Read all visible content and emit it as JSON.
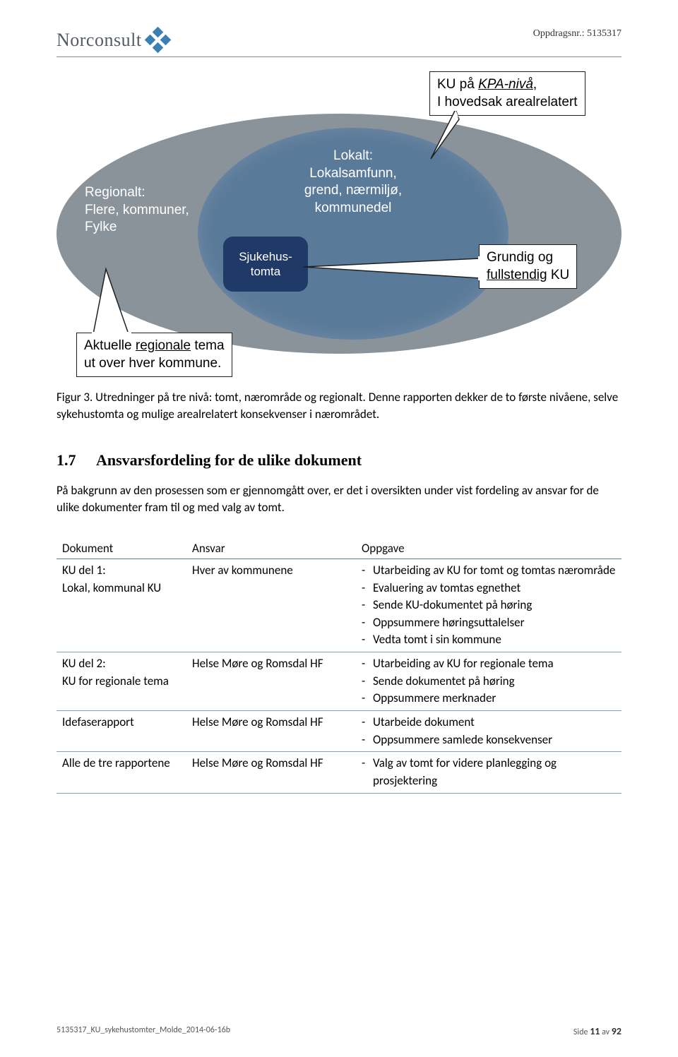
{
  "header": {
    "company": "Norconsult",
    "ref_label": "Oppdragsnr.: 5135317"
  },
  "diagram": {
    "colors": {
      "outer_ellipse": "#8a929a",
      "mid_ellipse": "#5a7a99",
      "inner_box": "#1f3a66",
      "callout_border": "#1f1f1f",
      "callout_bg": "#ffffff"
    },
    "inner_label": "Sjukehus-\ntomta",
    "outer_label": "Regionalt:\nFlere, kommuner,\nFylke",
    "mid_label": "Lokalt:\nLokalsamfunn,\ngrend, nærmiljø,\nkommunedel",
    "callout_top_a": "KU på ",
    "callout_top_b_italic_underline": "KPA-nivå",
    "callout_top_c": ",\nI hovedsak arealrelatert",
    "callout_right_a": "Grundig og\n",
    "callout_right_b_underline": "fullstendig",
    "callout_right_c": " KU",
    "callout_bottom_a": "Aktuelle ",
    "callout_bottom_b_underline": "regionale",
    "callout_bottom_c": " tema\nut over hver kommune."
  },
  "caption": "Figur 3. Utredninger på tre nivå: tomt, nærområde og regionalt. Denne rapporten dekker de to første nivåene, selve sykehustomta og mulige arealrelatert konsekvenser i nærområdet.",
  "section": {
    "number": "1.7",
    "title": "Ansvarsfordeling for de ulike dokument",
    "body": "På bakgrunn av den prosessen som er gjennomgått over, er det i oversikten under vist fordeling av ansvar for de ulike dokumenter fram til og med valg av tomt."
  },
  "table": {
    "headers": [
      "Dokument",
      "Ansvar",
      "Oppgave"
    ],
    "rows": [
      {
        "doc": "KU del 1:\nLokal, kommunal KU",
        "ansvar": "Hver av kommunene",
        "tasks": [
          "Utarbeiding av KU for tomt og tomtas nærområde",
          "Evaluering av tomtas egnethet",
          "Sende KU-dokumentet på høring",
          "Oppsummere høringsuttalelser",
          "Vedta tomt i sin kommune"
        ]
      },
      {
        "doc": "KU del 2:\nKU for regionale tema",
        "ansvar": "Helse Møre og Romsdal HF",
        "tasks": [
          "Utarbeiding av KU for regionale tema",
          "Sende dokumentet på høring",
          "Oppsummere merknader"
        ]
      },
      {
        "doc": "Idefaserapport",
        "ansvar": "Helse Møre og Romsdal HF",
        "tasks": [
          "Utarbeide dokument",
          "Oppsummere samlede konsekvenser"
        ]
      },
      {
        "doc": "Alle de tre rapportene",
        "ansvar": "Helse Møre og Romsdal HF",
        "tasks": [
          "Valg av tomt for videre planlegging og prosjektering"
        ]
      }
    ]
  },
  "footer": {
    "left": "5135317_KU_sykehustomter_Molde_2014-06-16b",
    "right_prefix": "Side ",
    "page": "11",
    "right_mid": " av ",
    "total": "92"
  }
}
